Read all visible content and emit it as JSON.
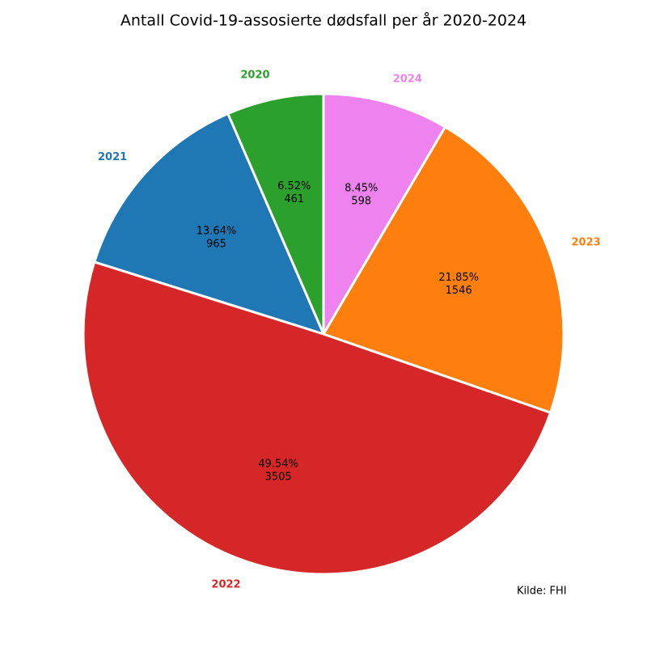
{
  "chart_data": {
    "type": "pie",
    "title": "Antall Covid-19-assosierte dødsfall per år 2020-2024",
    "categories": [
      "2020",
      "2021",
      "2022",
      "2023",
      "2024"
    ],
    "values": [
      461,
      965,
      3505,
      1546,
      598
    ],
    "percent_labels": [
      "6.52%",
      "13.64%",
      "49.54%",
      "21.85%",
      "8.45%"
    ],
    "colors": [
      "#2ca02c",
      "#1f77b4",
      "#d62728",
      "#ff7f0e",
      "#ee82ee"
    ],
    "start_angle": 90,
    "counterclockwise": true,
    "source": "Kilde: FHI"
  }
}
